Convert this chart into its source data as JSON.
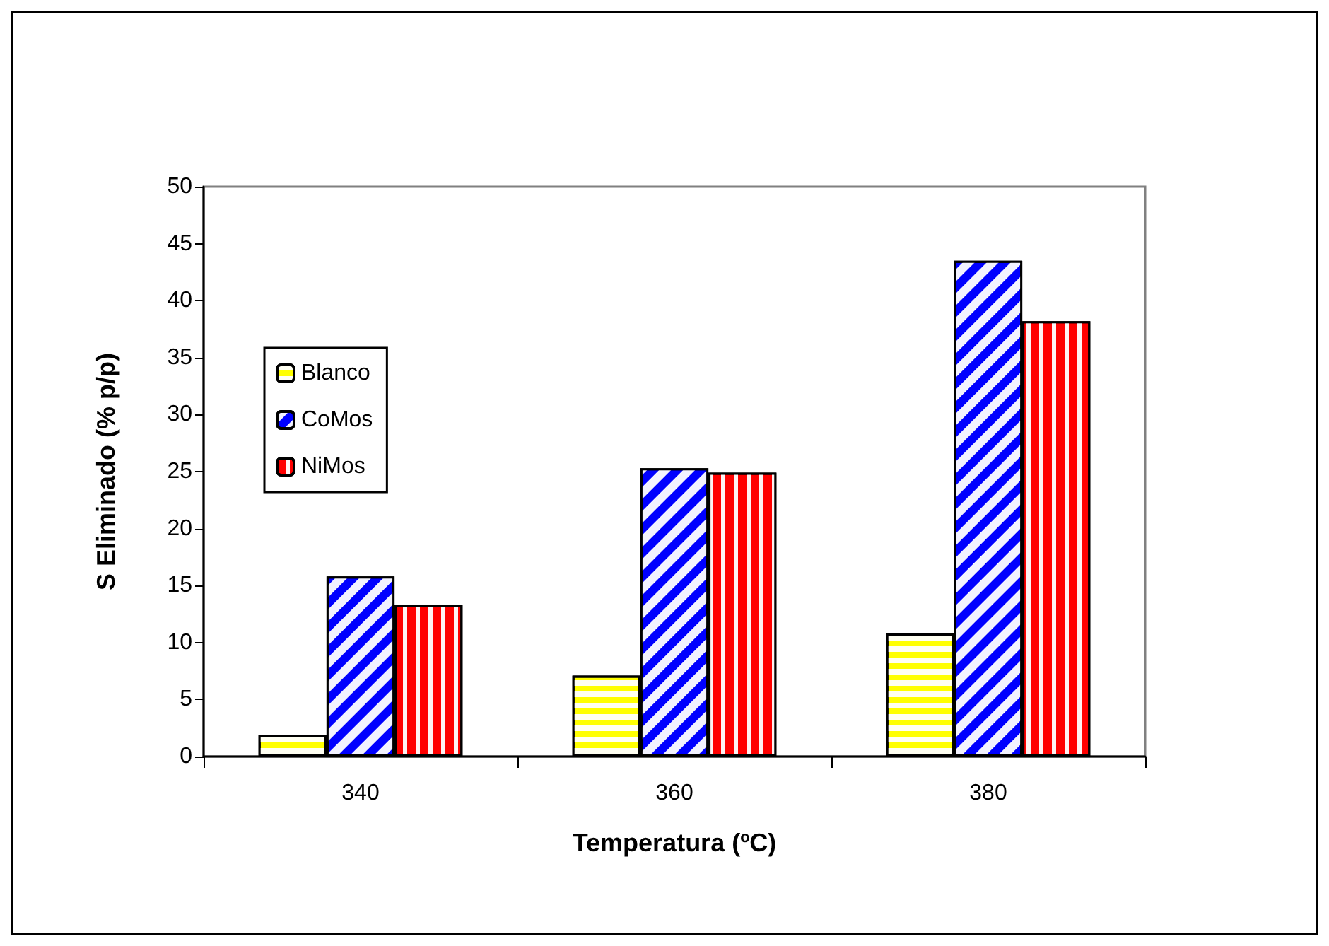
{
  "chart_data": {
    "type": "bar",
    "xlabel": "Temperatura (ºC)",
    "ylabel": "S Eliminado (% p/p)",
    "categories": [
      "340",
      "360",
      "380"
    ],
    "series": [
      {
        "name": "Blanco",
        "color": "#ffff00",
        "values": [
          1.9,
          7.1,
          10.8
        ]
      },
      {
        "name": "CoMos",
        "color": "#0000ff",
        "values": [
          15.8,
          25.3,
          43.5
        ]
      },
      {
        "name": "NiMos",
        "color": "#ff0000",
        "values": [
          13.3,
          24.9,
          38.2
        ]
      }
    ],
    "ylim": [
      0,
      50
    ],
    "yticks": [
      0,
      5,
      10,
      15,
      20,
      25,
      30,
      35,
      40,
      45,
      50
    ],
    "grid": false,
    "legend": "left"
  }
}
